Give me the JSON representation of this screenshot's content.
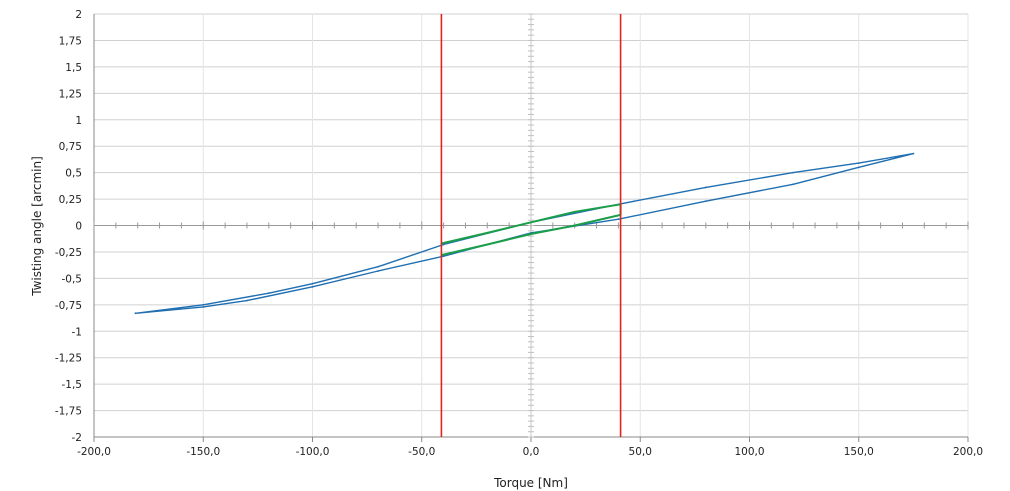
{
  "chart_data": {
    "type": "line",
    "title": "",
    "xlabel": "Torque  [Nm]",
    "ylabel": "Twisting angle  [arcmin]",
    "xlim": [
      -200,
      200
    ],
    "ylim": [
      -2,
      2
    ],
    "x_ticks": [
      -200,
      -150,
      -100,
      -50,
      0,
      50,
      100,
      150,
      200
    ],
    "x_tick_labels": [
      "-200,0",
      "-150,0",
      "-100,0",
      "-50,0",
      "0,0",
      "50,0",
      "100,0",
      "150,0",
      "200,0"
    ],
    "y_ticks": [
      2,
      1.75,
      1.5,
      1.25,
      1,
      0.75,
      0.5,
      0.25,
      0,
      -0.25,
      -0.5,
      -0.75,
      -1,
      -1.25,
      -1.5,
      -1.75,
      -2
    ],
    "y_tick_labels": [
      "2",
      "1,75",
      "1,5",
      "1,25",
      "1",
      "0,75",
      "0,5",
      "0,25",
      "0",
      "-0,25",
      "-0,5",
      "-0,75",
      "-1",
      "-1,25",
      "-1,5",
      "-1,75",
      "-2"
    ],
    "grid": true,
    "colors": {
      "blue": "#1f6fb2",
      "green": "#1a9e48",
      "red": "#e0231c",
      "grid": "#d0d0d0"
    },
    "series": [
      {
        "color": "#1f6fb2",
        "x": [
          -181,
          -150,
          -120,
          -100,
          -70,
          -40,
          0,
          40,
          80,
          120,
          150,
          175,
          150,
          120,
          80,
          40,
          0,
          -40,
          -70,
          -100,
          -130,
          -150,
          -181
        ],
        "y": [
          -0.83,
          -0.75,
          -0.64,
          -0.55,
          -0.39,
          -0.18,
          0.03,
          0.2,
          0.36,
          0.5,
          0.59,
          0.68,
          0.55,
          0.39,
          0.23,
          0.06,
          -0.07,
          -0.29,
          -0.43,
          -0.58,
          -0.71,
          -0.77,
          -0.83
        ]
      },
      {
        "color": "#1a9e48",
        "x": [
          -41,
          -20,
          0,
          20,
          41,
          41,
          20,
          0,
          -20,
          -41
        ],
        "y": [
          -0.17,
          -0.07,
          0.03,
          0.13,
          0.2,
          0.1,
          0.0,
          -0.08,
          -0.18,
          -0.28
        ]
      }
    ],
    "vertical_lines": [
      {
        "x": -41,
        "color": "#e0231c"
      },
      {
        "x": 41,
        "color": "#e0231c"
      }
    ]
  }
}
